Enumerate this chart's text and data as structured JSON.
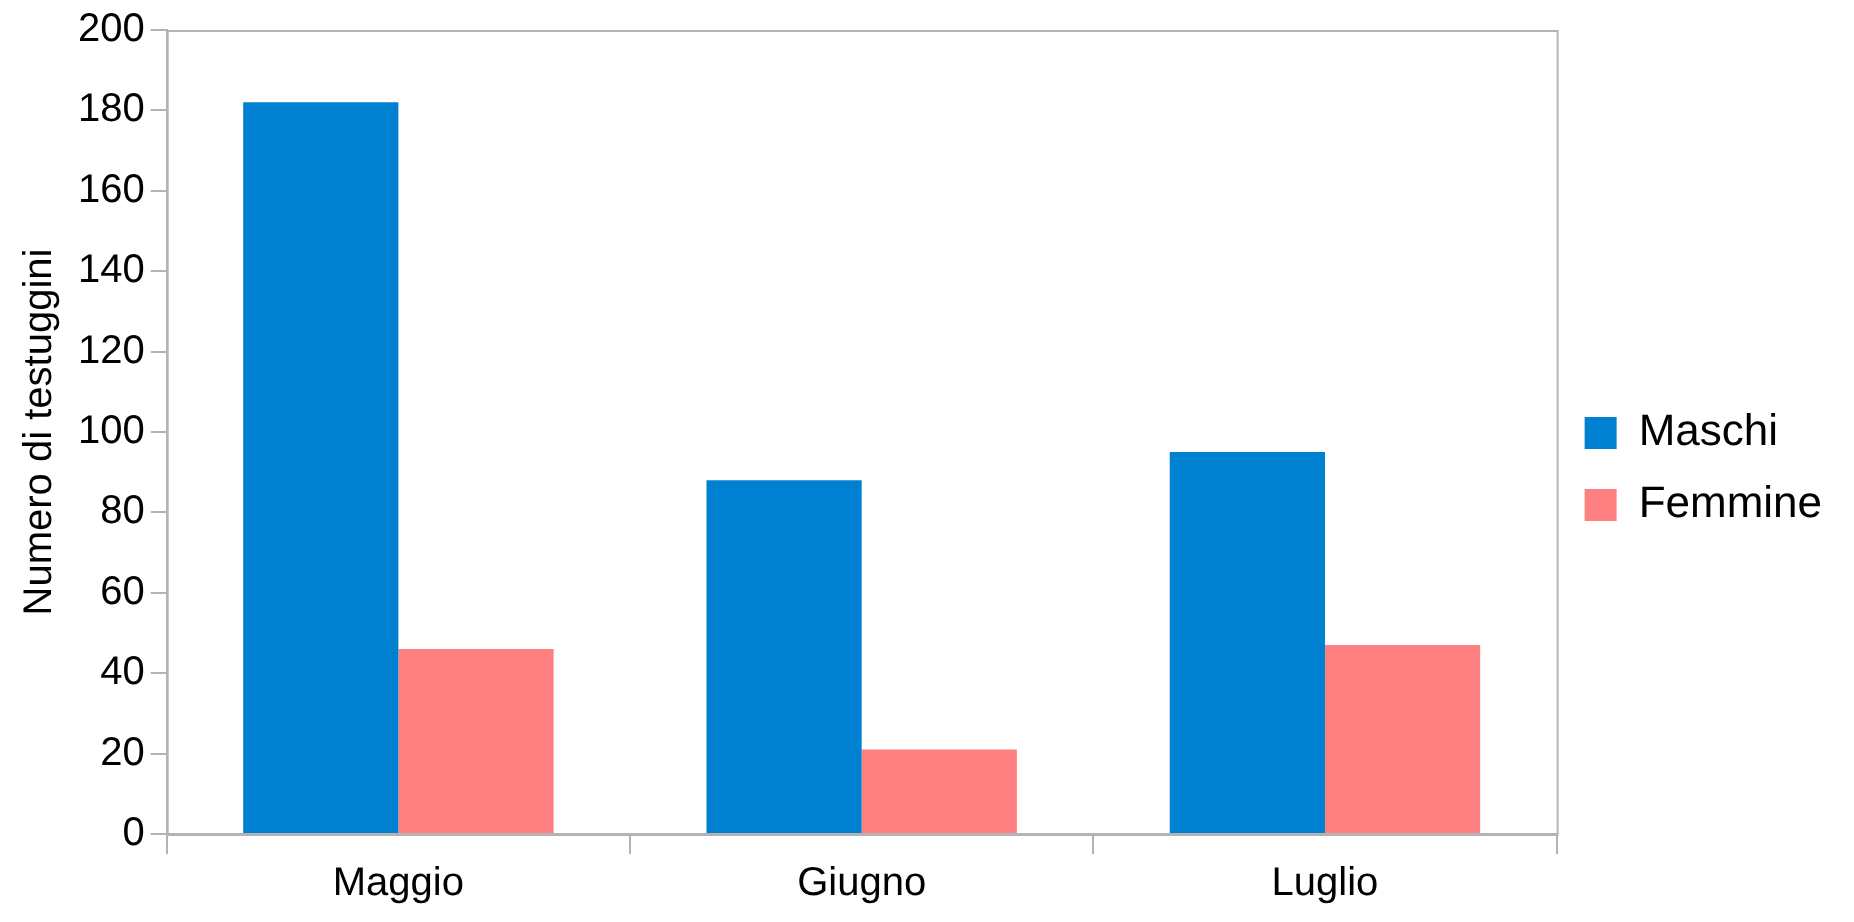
{
  "chart_data": {
    "type": "bar",
    "ylabel": "Numero di testuggini",
    "categories": [
      "Maggio",
      "Giugno",
      "Luglio"
    ],
    "series": [
      {
        "name": "Maschi",
        "color": "#0080d0",
        "values": [
          182,
          88,
          95
        ]
      },
      {
        "name": "Femmine",
        "color": "#ff8080",
        "values": [
          46,
          21,
          47
        ]
      }
    ],
    "ylim": [
      0,
      200
    ],
    "yticks": [
      0,
      20,
      40,
      60,
      80,
      100,
      120,
      140,
      160,
      180,
      200
    ],
    "grid": false,
    "legend": "right"
  }
}
